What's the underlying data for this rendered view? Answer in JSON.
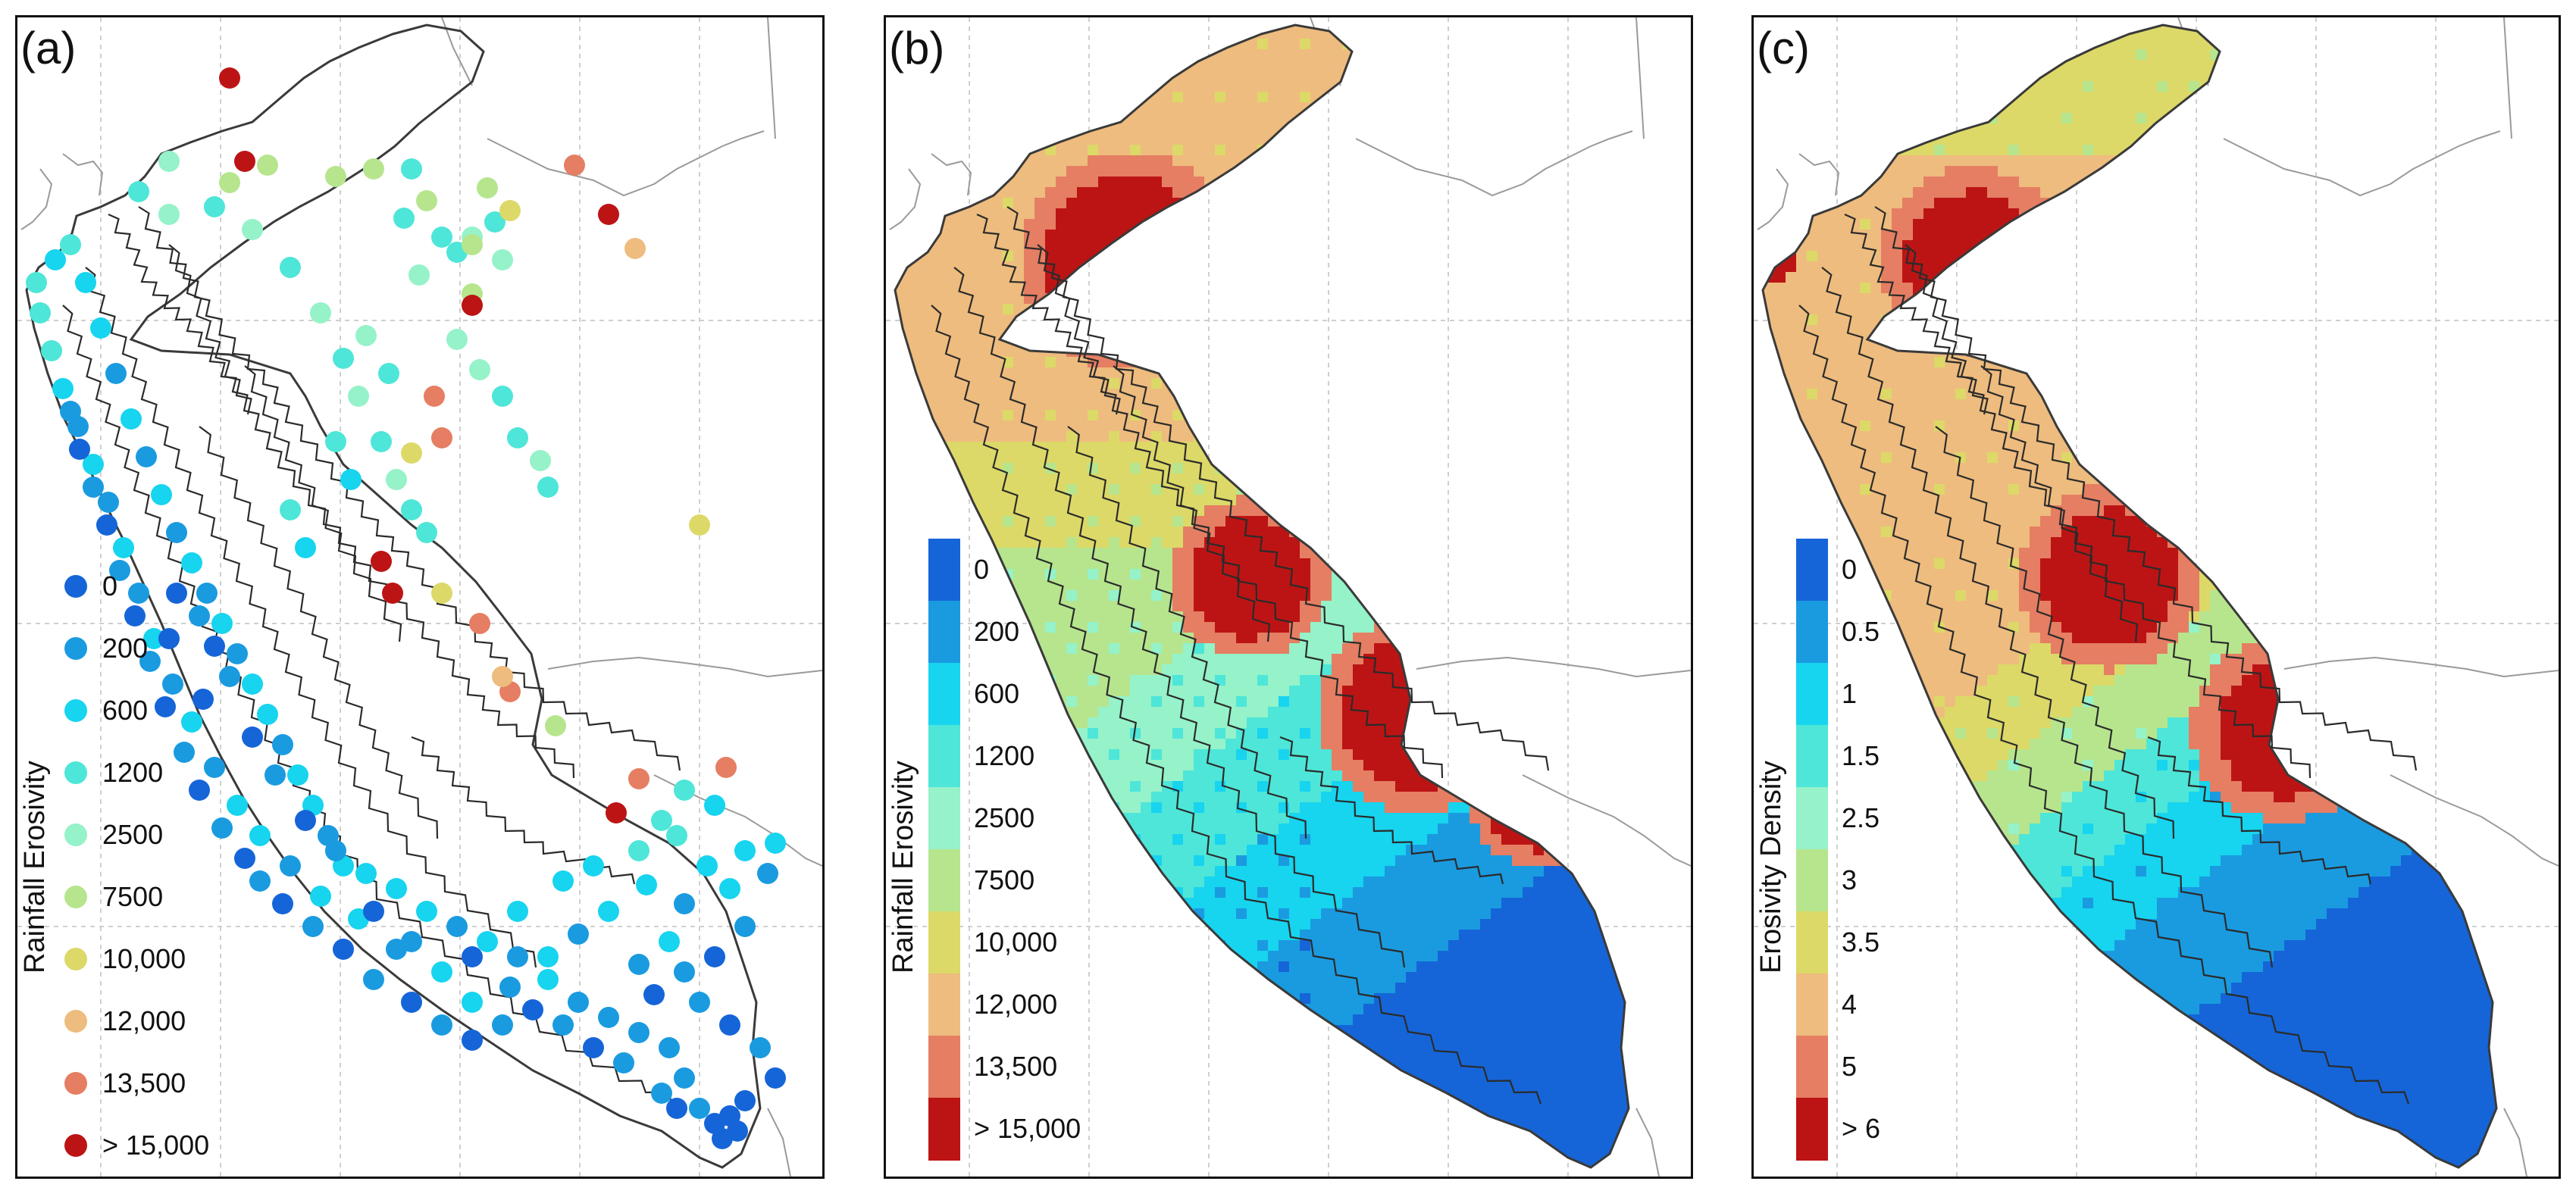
{
  "panels": [
    {
      "id": "a",
      "label": "(a)",
      "legend_title": "Rainfall Erosivity",
      "legend_type": "points",
      "legend_items": [
        "0",
        "200",
        "600",
        "1200",
        "2500",
        "7500",
        "10,000",
        "12,000",
        "13,500",
        "> 15,000"
      ]
    },
    {
      "id": "b",
      "label": "(b)",
      "legend_title": "Rainfall Erosivity",
      "legend_type": "colorbar",
      "legend_items": [
        "0",
        "200",
        "600",
        "1200",
        "2500",
        "7500",
        "10,000",
        "12,000",
        "13,500",
        "> 15,000"
      ]
    },
    {
      "id": "c",
      "label": "(c)",
      "legend_title": "Erosivity Density",
      "legend_type": "colorbar",
      "legend_items": [
        "0",
        "0.5",
        "1",
        "1.5",
        "2.5",
        "3",
        "3.5",
        "4",
        "5",
        "> 6"
      ]
    }
  ],
  "colors": {
    "classes": [
      "#1565d8",
      "#1a9be0",
      "#17d4ef",
      "#4ee6d8",
      "#95f2c9",
      "#b6e58e",
      "#dcd968",
      "#eebc7e",
      "#e57e63",
      "#bc1414"
    ],
    "outline": "#3a3a3a",
    "neighbor": "#9a9a9a",
    "grid": "#cfcfcf"
  }
}
